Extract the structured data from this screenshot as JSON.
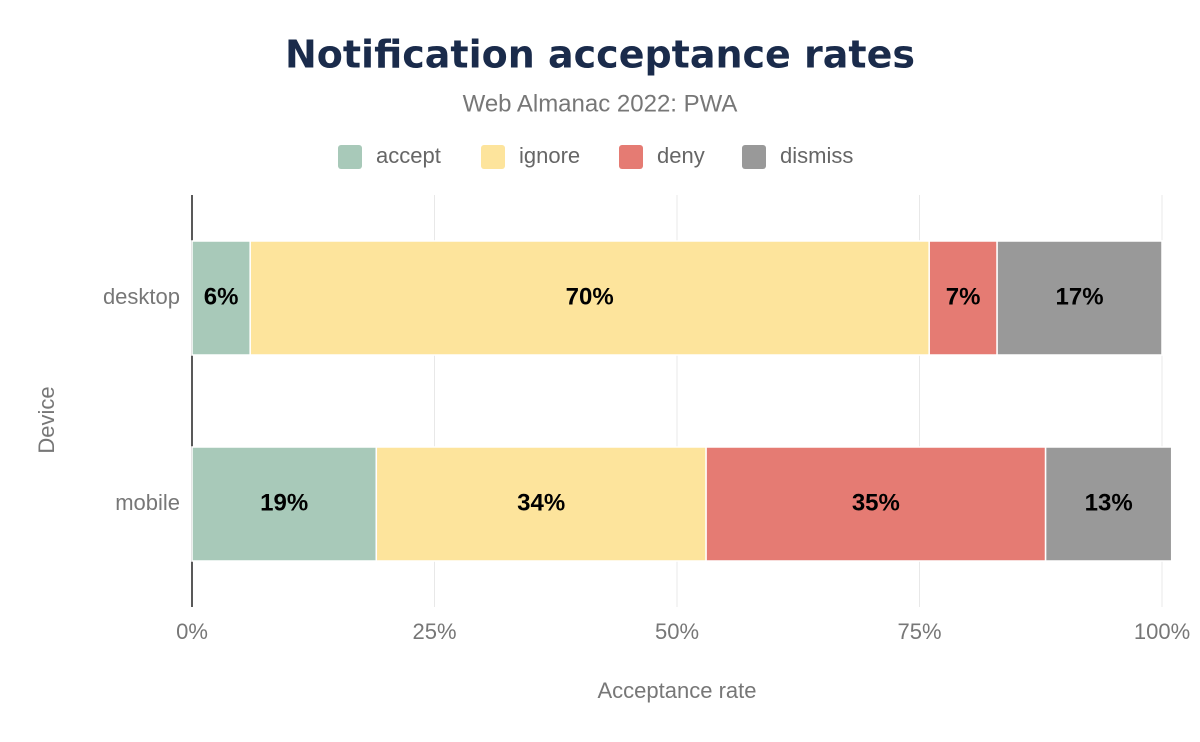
{
  "chart_data": {
    "type": "stacked-bar-horizontal",
    "title": "Notification acceptance rates",
    "subtitle": "Web Almanac 2022: PWA",
    "x_label": "Acceptance rate",
    "y_label": "Device",
    "categories": [
      "desktop",
      "mobile"
    ],
    "series": [
      {
        "name": "accept",
        "color": "#a8c9b9",
        "values": [
          6,
          19
        ],
        "value_labels": [
          "6%",
          "19%"
        ]
      },
      {
        "name": "ignore",
        "color": "#fde49c",
        "values": [
          70,
          34
        ],
        "value_labels": [
          "70%",
          "34%"
        ]
      },
      {
        "name": "deny",
        "color": "#e57b73",
        "values": [
          7,
          35
        ],
        "value_labels": [
          "7%",
          "35%"
        ]
      },
      {
        "name": "dismiss",
        "color": "#999999",
        "values": [
          17,
          13
        ],
        "value_labels": [
          "17%",
          "13%"
        ]
      }
    ],
    "xlim": [
      0,
      100
    ],
    "xticks": [
      {
        "value": 0,
        "label": "0%"
      },
      {
        "value": 25,
        "label": "25%"
      },
      {
        "value": 50,
        "label": "50%"
      },
      {
        "value": 75,
        "label": "75%"
      },
      {
        "value": 100,
        "label": "100%"
      }
    ],
    "grid": true,
    "legend": "top"
  }
}
